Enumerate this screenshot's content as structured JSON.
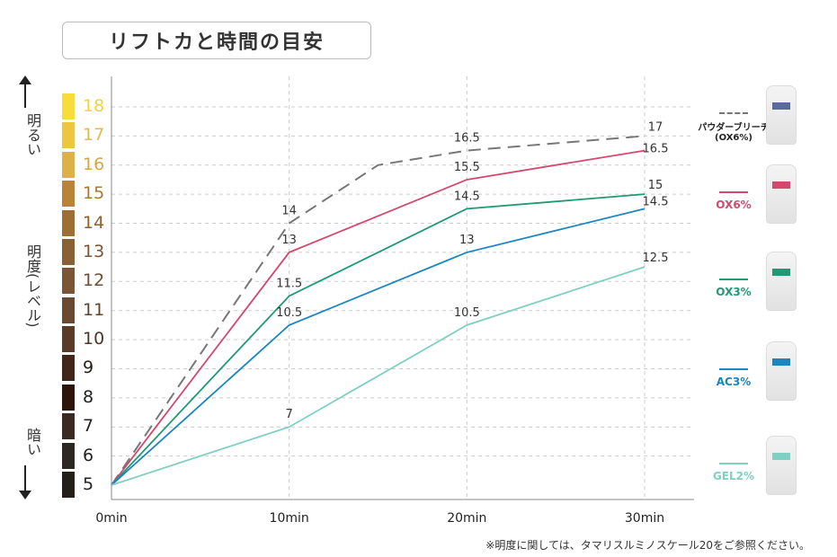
{
  "title": "リフトカと時間の目安",
  "side_labels": {
    "bright": "明るい",
    "level": "明度(レベル)",
    "dark": "暗い"
  },
  "level_colors": [
    {
      "level": "18",
      "swatch": "#f7dc3c",
      "text": "#f0d33a"
    },
    {
      "level": "17",
      "swatch": "#ecc63e",
      "text": "#e2bd45"
    },
    {
      "level": "16",
      "swatch": "#ddb04a",
      "text": "#d4a64c"
    },
    {
      "level": "15",
      "swatch": "#b9843a",
      "text": "#a77935"
    },
    {
      "level": "14",
      "swatch": "#9e6e34",
      "text": "#8a6030"
    },
    {
      "level": "13",
      "swatch": "#8a6035",
      "text": "#7a5532"
    },
    {
      "level": "12",
      "swatch": "#7b5636",
      "text": "#6e4d33"
    },
    {
      "level": "11",
      "swatch": "#6a4a30",
      "text": "#5e432d"
    },
    {
      "level": "10",
      "swatch": "#5a3c26",
      "text": "#4e3624"
    },
    {
      "level": "9",
      "swatch": "#42261a",
      "text": "#2a1c14"
    },
    {
      "level": "8",
      "swatch": "#2e150c",
      "text": "#222"
    },
    {
      "level": "7",
      "swatch": "#3a2a22",
      "text": "#222"
    },
    {
      "level": "6",
      "swatch": "#2e2622",
      "text": "#222"
    },
    {
      "level": "5",
      "swatch": "#251e1a",
      "text": "#222"
    }
  ],
  "footnote": "※明度に関しては、タマリスルミノスケール20をご参照ください。",
  "chart_data": {
    "type": "line",
    "title": "リフトカと時間の目安",
    "xlabel": "",
    "ylabel": "明度(レベル)",
    "x_ticks": [
      "0min",
      "10min",
      "20min",
      "30min"
    ],
    "xlim": [
      0,
      30
    ],
    "ylim": [
      5,
      18
    ],
    "grid": true,
    "legend_placement": "right",
    "series": [
      {
        "name": "パウダーブリーチ",
        "name2": "(OX6%)",
        "color": "#777777",
        "dashed": true,
        "x": [
          0,
          10,
          15,
          20,
          30
        ],
        "y": [
          5,
          14,
          16,
          16.5,
          17
        ],
        "labels": [
          "",
          "14",
          "",
          "16.5",
          "17"
        ]
      },
      {
        "name": "OX6%",
        "color": "#d4486e",
        "dashed": false,
        "x": [
          0,
          10,
          20,
          30
        ],
        "y": [
          5,
          13,
          15.5,
          16.5
        ],
        "labels": [
          "",
          "13",
          "15.5",
          "16.5"
        ]
      },
      {
        "name": "OX3%",
        "color": "#1f9a73",
        "dashed": false,
        "x": [
          0,
          10,
          20,
          30
        ],
        "y": [
          5,
          11.5,
          14.5,
          15
        ],
        "labels": [
          "",
          "11.5",
          "14.5",
          "15"
        ]
      },
      {
        "name": "AC3%",
        "color": "#1a86c0",
        "dashed": false,
        "x": [
          0,
          10,
          20,
          30
        ],
        "y": [
          5,
          10.5,
          13,
          14.5
        ],
        "labels": [
          "",
          "10.5",
          "13",
          "14.5"
        ]
      },
      {
        "name": "GEL2%",
        "color": "#7fcfc3",
        "dashed": false,
        "x": [
          0,
          10,
          20,
          30
        ],
        "y": [
          5,
          7,
          10.5,
          12.5
        ],
        "labels": [
          "",
          "7",
          "10.5",
          "12.5"
        ]
      }
    ]
  }
}
